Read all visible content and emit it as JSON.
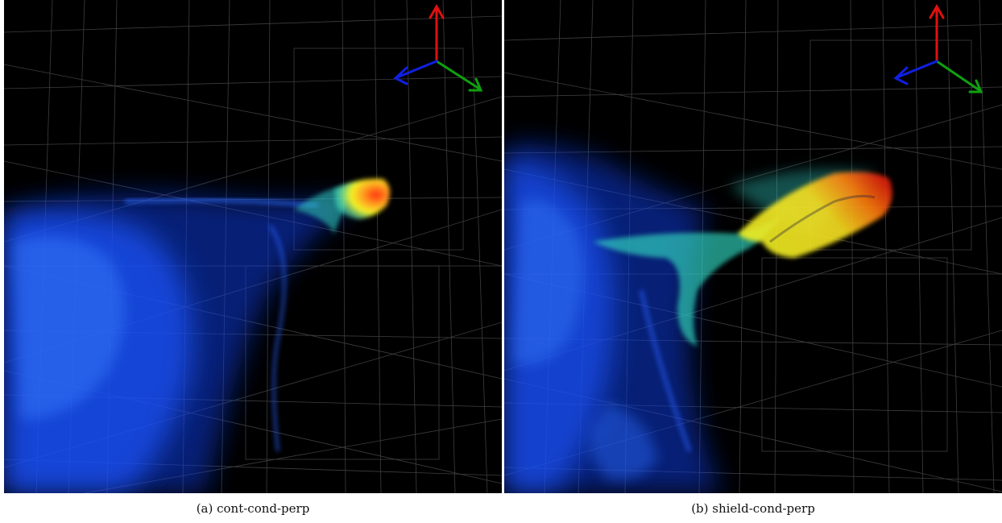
{
  "figure": {
    "panels": [
      {
        "id": "a",
        "caption": "(a) cont-cond-perp"
      },
      {
        "id": "b",
        "caption": "(b) shield-cond-perp"
      }
    ],
    "axis_colors": {
      "x": "#e01010",
      "y": "#10a010",
      "z": "#1020e0"
    },
    "grid_color": "#8a8a8a",
    "colormap": [
      "#1040ff",
      "#30d0c0",
      "#f0f020",
      "#ff6010",
      "#d01010"
    ]
  }
}
